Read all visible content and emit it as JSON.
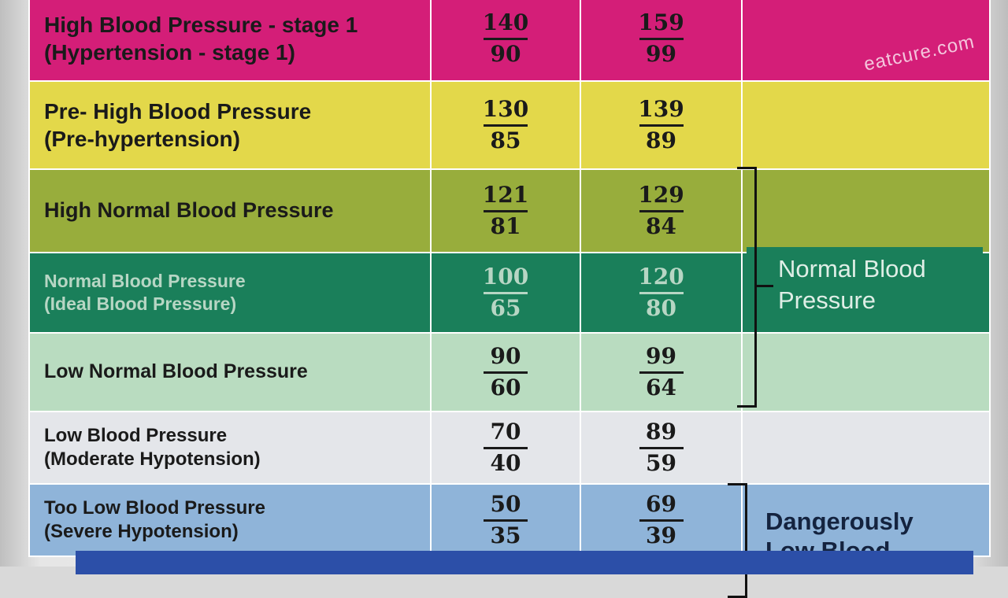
{
  "rows": [
    {
      "label_1": "High Blood Pressure - stage 1",
      "label_2": "(Hypertension - stage 1)",
      "min_sys": "140",
      "min_dia": "90",
      "max_sys": "159",
      "max_dia": "99",
      "color": "#d41e78"
    },
    {
      "label_1": "Pre- High Blood Pressure",
      "label_2": "(Pre-hypertension)",
      "min_sys": "130",
      "min_dia": "85",
      "max_sys": "139",
      "max_dia": "89",
      "color": "#e3d84a"
    },
    {
      "label_1": "High Normal Blood Pressure",
      "label_2": "",
      "min_sys": "121",
      "min_dia": "81",
      "max_sys": "129",
      "max_dia": "84",
      "color": "#98ad3c"
    },
    {
      "label_1": "Normal Blood Pressure",
      "label_2": "(Ideal Blood Pressure)",
      "min_sys": "100",
      "min_dia": "65",
      "max_sys": "120",
      "max_dia": "80",
      "color": "#1a7f5a"
    },
    {
      "label_1": "Low Normal Blood Pressure",
      "label_2": "",
      "min_sys": "90",
      "min_dia": "60",
      "max_sys": "99",
      "max_dia": "64",
      "color": "#b9dcc0"
    },
    {
      "label_1": "Low Blood Pressure",
      "label_2": "(Moderate Hypotension)",
      "min_sys": "70",
      "min_dia": "40",
      "max_sys": "89",
      "max_dia": "59",
      "color": "#e4e6ea"
    },
    {
      "label_1": "Too Low Blood Pressure",
      "label_2": "(Severe Hypotension)",
      "min_sys": "50",
      "min_dia": "35",
      "max_sys": "69",
      "max_dia": "39",
      "color": "#8fb4d9"
    }
  ],
  "side_labels": {
    "normal": "Normal Blood Pressure",
    "danger": "Dangerously Low Blood"
  },
  "watermark": "eatcure.com",
  "colors": {
    "normal_side": "#1a7f5a",
    "danger_side": "#8fb4d9",
    "bottom_strip": "#2c4fa8"
  }
}
